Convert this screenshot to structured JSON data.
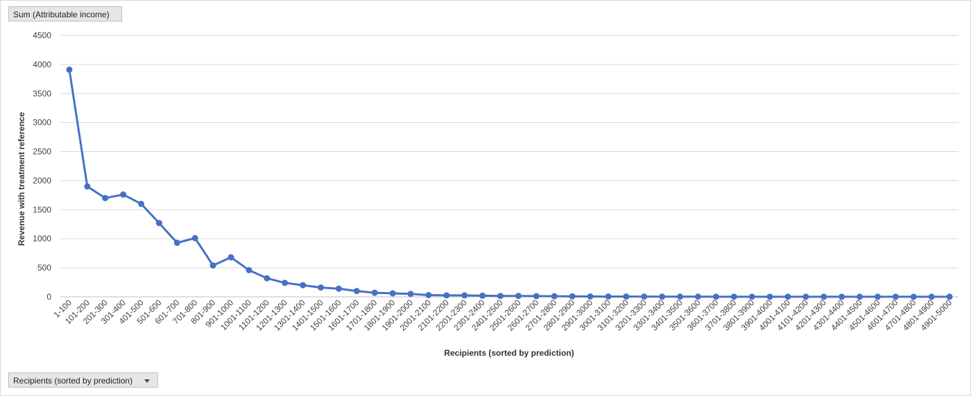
{
  "pivot": {
    "value_field": "Sum (Attributable income)",
    "axis_field": "Recipients (sorted by prediction)"
  },
  "chart_data": {
    "type": "line",
    "title": "",
    "xlabel": "Recipients (sorted by prediction)",
    "ylabel": "Revenue  with treatment reference",
    "ylim": [
      0,
      4500
    ],
    "yticks": [
      0,
      500,
      1000,
      1500,
      2000,
      2500,
      3000,
      3500,
      4000,
      4500
    ],
    "grid": true,
    "line_color": "#4472c4",
    "categories": [
      "1-100",
      "101-200",
      "201-300",
      "301-400",
      "401-500",
      "501-600",
      "601-700",
      "701-800",
      "801-900",
      "901-1000",
      "1001-1100",
      "1101-1200",
      "1201-1300",
      "1301-1400",
      "1401-1500",
      "1501-1600",
      "1601-1700",
      "1701-1800",
      "1801-1900",
      "1901-2000",
      "2001-2100",
      "2101-2200",
      "2201-2300",
      "2301-2400",
      "2401-2500",
      "2501-2600",
      "2601-2700",
      "2701-2800",
      "2801-2900",
      "2901-3000",
      "3001-3100",
      "3101-3200",
      "3201-3300",
      "3301-3400",
      "3401-3500",
      "3501-3600",
      "3601-3700",
      "3701-3800",
      "3801-3900",
      "3901-4000",
      "4001-4100",
      "4101-4200",
      "4201-4300",
      "4301-4400",
      "4401-4500",
      "4501-4600",
      "4601-4700",
      "4701-4800",
      "4801-4900",
      "4901-5000"
    ],
    "values": [
      3910,
      1900,
      1700,
      1760,
      1600,
      1270,
      930,
      1010,
      540,
      680,
      460,
      320,
      240,
      200,
      160,
      140,
      100,
      70,
      60,
      50,
      30,
      25,
      25,
      20,
      15,
      15,
      12,
      10,
      8,
      6,
      5,
      4,
      4,
      3,
      3,
      3,
      2,
      2,
      2,
      2,
      2,
      1,
      1,
      1,
      1,
      1,
      1,
      1,
      1,
      1
    ]
  }
}
